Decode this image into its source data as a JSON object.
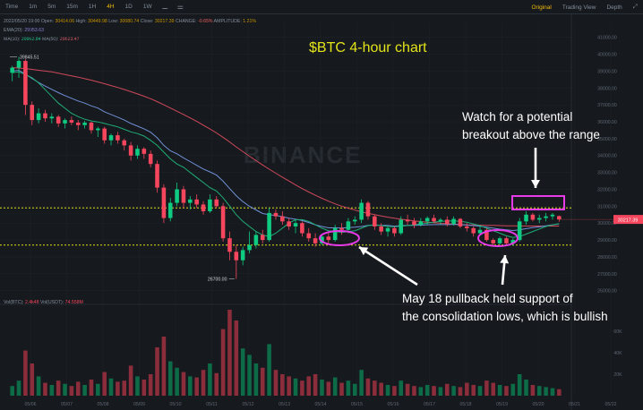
{
  "toolbar": {
    "intervals": [
      "Time",
      "1m",
      "5m",
      "15m",
      "1H",
      "4H",
      "1D",
      "1W"
    ],
    "active": "4H",
    "views": [
      "Original",
      "Trading View",
      "Depth"
    ],
    "active_view": "Original"
  },
  "info": {
    "date": "2022/05/20 19:00",
    "open_label": "Open:",
    "open": "30414.06",
    "high_label": "High:",
    "high": "30449.98",
    "low_label": "Low:",
    "low": "30080.74",
    "close_label": "Close:",
    "close": "30217.39",
    "change_label": "CHANGE:",
    "change": "-0.65%",
    "amp_label": "AMPLITUDE:",
    "amp": "1.21%",
    "ema_label": "EMA(20):",
    "ema": "29953.63",
    "ma10_label": "MA(10):",
    "ma10": "29962.84",
    "ma50_label": "MA(50):",
    "ma50": "29823.47"
  },
  "title": "$BTC 4-hour chart",
  "watermark": "BINANCE",
  "annotations": {
    "top_line1": "Watch for a potential",
    "top_line2": "breakout above the range",
    "bottom_line1": "May 18 pullback held support of",
    "bottom_line2": "the consolidation lows, which is bullish"
  },
  "labels": {
    "high_marker": "39845.51",
    "low_marker": "26700.00",
    "price_tag": "30217.39"
  },
  "volume": {
    "vol_label": "Vol(BTC):",
    "vol_btc": "2.4k48",
    "usdt_label": "Vol(USDT):",
    "vol_usdt": "74.558M"
  },
  "colors": {
    "up": "#0ecb81",
    "down": "#f6465d",
    "accent": "#f0b90b",
    "title": "#e3e31a",
    "highlight": "#e83ae8"
  },
  "chart_data": {
    "type": "candlestick",
    "x_ticks": [
      "05/06",
      "05/07",
      "05/08",
      "05/09",
      "05/10",
      "05/11",
      "05/12",
      "05/13",
      "05/14",
      "05/15",
      "05/16",
      "05/17",
      "05/18",
      "05/19",
      "05/20",
      "05/21",
      "05/22"
    ],
    "y_ticks": [
      "41000.00",
      "40000.00",
      "39000.00",
      "38000.00",
      "37000.00",
      "36000.00",
      "35000.00",
      "34000.00",
      "33000.00",
      "32000.00",
      "31000.00",
      "30000.00",
      "29000.00",
      "28000.00",
      "27000.00",
      "26000.00"
    ],
    "ylim": [
      25400,
      41300
    ],
    "volume_ticks": [
      "60K",
      "40K",
      "20K"
    ],
    "volume_ylim": [
      0,
      80000
    ],
    "support_level": 28700,
    "resistance_level": 30900,
    "candles": [
      {
        "o": 38900,
        "h": 39300,
        "l": 38400,
        "c": 39200
      },
      {
        "o": 39200,
        "h": 39845,
        "l": 38600,
        "c": 39600
      },
      {
        "o": 39600,
        "h": 39700,
        "l": 36400,
        "c": 37000
      },
      {
        "o": 37000,
        "h": 37200,
        "l": 35800,
        "c": 36100
      },
      {
        "o": 36100,
        "h": 36800,
        "l": 35900,
        "c": 36500
      },
      {
        "o": 36500,
        "h": 36700,
        "l": 36000,
        "c": 36200
      },
      {
        "o": 36200,
        "h": 36500,
        "l": 35900,
        "c": 36300
      },
      {
        "o": 36300,
        "h": 36400,
        "l": 35700,
        "c": 35900
      },
      {
        "o": 35900,
        "h": 36200,
        "l": 35600,
        "c": 36100
      },
      {
        "o": 36100,
        "h": 36300,
        "l": 35800,
        "c": 35950
      },
      {
        "o": 35950,
        "h": 36100,
        "l": 35500,
        "c": 35800
      },
      {
        "o": 35800,
        "h": 36050,
        "l": 35600,
        "c": 35950
      },
      {
        "o": 35950,
        "h": 36000,
        "l": 35300,
        "c": 35500
      },
      {
        "o": 35500,
        "h": 35700,
        "l": 35100,
        "c": 35600
      },
      {
        "o": 35600,
        "h": 35700,
        "l": 34700,
        "c": 34900
      },
      {
        "o": 34900,
        "h": 35300,
        "l": 34600,
        "c": 35200
      },
      {
        "o": 35200,
        "h": 35400,
        "l": 34700,
        "c": 34900
      },
      {
        "o": 34900,
        "h": 35000,
        "l": 34300,
        "c": 34600
      },
      {
        "o": 34600,
        "h": 34800,
        "l": 33700,
        "c": 34000
      },
      {
        "o": 34000,
        "h": 34600,
        "l": 33800,
        "c": 34400
      },
      {
        "o": 34400,
        "h": 34500,
        "l": 33800,
        "c": 34100
      },
      {
        "o": 34100,
        "h": 34300,
        "l": 33300,
        "c": 33500
      },
      {
        "o": 33500,
        "h": 33700,
        "l": 31800,
        "c": 32100
      },
      {
        "o": 32100,
        "h": 32300,
        "l": 30000,
        "c": 30300
      },
      {
        "o": 30300,
        "h": 31500,
        "l": 30100,
        "c": 31200
      },
      {
        "o": 31200,
        "h": 32400,
        "l": 31000,
        "c": 32000
      },
      {
        "o": 32000,
        "h": 32200,
        "l": 30900,
        "c": 31200
      },
      {
        "o": 31200,
        "h": 31600,
        "l": 30800,
        "c": 31400
      },
      {
        "o": 31400,
        "h": 31700,
        "l": 30900,
        "c": 31100
      },
      {
        "o": 31100,
        "h": 31300,
        "l": 30500,
        "c": 30700
      },
      {
        "o": 30700,
        "h": 31700,
        "l": 30600,
        "c": 31400
      },
      {
        "o": 31400,
        "h": 31600,
        "l": 30900,
        "c": 31000
      },
      {
        "o": 31000,
        "h": 31200,
        "l": 28900,
        "c": 29100
      },
      {
        "o": 29100,
        "h": 29500,
        "l": 27800,
        "c": 28300
      },
      {
        "o": 28300,
        "h": 28700,
        "l": 26700,
        "c": 27800
      },
      {
        "o": 27800,
        "h": 28600,
        "l": 27500,
        "c": 28400
      },
      {
        "o": 28400,
        "h": 29500,
        "l": 28200,
        "c": 28700
      },
      {
        "o": 28700,
        "h": 29500,
        "l": 28500,
        "c": 29300
      },
      {
        "o": 29300,
        "h": 29600,
        "l": 28800,
        "c": 29000
      },
      {
        "o": 29000,
        "h": 30900,
        "l": 28900,
        "c": 30600
      },
      {
        "o": 30600,
        "h": 30800,
        "l": 30200,
        "c": 30400
      },
      {
        "o": 30400,
        "h": 30700,
        "l": 29900,
        "c": 30100
      },
      {
        "o": 30100,
        "h": 30300,
        "l": 29600,
        "c": 29800
      },
      {
        "o": 29800,
        "h": 30200,
        "l": 29400,
        "c": 30000
      },
      {
        "o": 30000,
        "h": 30100,
        "l": 29200,
        "c": 29400
      },
      {
        "o": 29400,
        "h": 29700,
        "l": 28900,
        "c": 29100
      },
      {
        "o": 29100,
        "h": 29400,
        "l": 28600,
        "c": 28800
      },
      {
        "o": 28800,
        "h": 29300,
        "l": 28700,
        "c": 29200
      },
      {
        "o": 29200,
        "h": 29500,
        "l": 28800,
        "c": 29000
      },
      {
        "o": 29000,
        "h": 29900,
        "l": 28900,
        "c": 29700
      },
      {
        "o": 29700,
        "h": 30000,
        "l": 29300,
        "c": 29600
      },
      {
        "o": 29600,
        "h": 30300,
        "l": 29400,
        "c": 30100
      },
      {
        "o": 30100,
        "h": 30400,
        "l": 29900,
        "c": 30200
      },
      {
        "o": 30200,
        "h": 31400,
        "l": 30000,
        "c": 31200
      },
      {
        "o": 31200,
        "h": 31300,
        "l": 30200,
        "c": 30400
      },
      {
        "o": 30400,
        "h": 30500,
        "l": 29600,
        "c": 29800
      },
      {
        "o": 29800,
        "h": 30000,
        "l": 29300,
        "c": 29500
      },
      {
        "o": 29500,
        "h": 29800,
        "l": 29200,
        "c": 29700
      },
      {
        "o": 29700,
        "h": 29800,
        "l": 29200,
        "c": 29400
      },
      {
        "o": 29400,
        "h": 30400,
        "l": 29300,
        "c": 30200
      },
      {
        "o": 30200,
        "h": 30500,
        "l": 29900,
        "c": 30100
      },
      {
        "o": 30100,
        "h": 30300,
        "l": 29700,
        "c": 29900
      },
      {
        "o": 29900,
        "h": 30300,
        "l": 29800,
        "c": 30100
      },
      {
        "o": 30100,
        "h": 30400,
        "l": 29900,
        "c": 30300
      },
      {
        "o": 30300,
        "h": 30500,
        "l": 30000,
        "c": 30100
      },
      {
        "o": 30100,
        "h": 30300,
        "l": 29900,
        "c": 30200
      },
      {
        "o": 30200,
        "h": 30400,
        "l": 29800,
        "c": 29950
      },
      {
        "o": 29950,
        "h": 30400,
        "l": 29850,
        "c": 30250
      },
      {
        "o": 30250,
        "h": 30300,
        "l": 29700,
        "c": 29800
      },
      {
        "o": 29800,
        "h": 30000,
        "l": 29500,
        "c": 29700
      },
      {
        "o": 29700,
        "h": 29800,
        "l": 29200,
        "c": 29400
      },
      {
        "o": 29400,
        "h": 29800,
        "l": 29300,
        "c": 29600
      },
      {
        "o": 29600,
        "h": 29700,
        "l": 28900,
        "c": 29000
      },
      {
        "o": 29000,
        "h": 29100,
        "l": 28600,
        "c": 28800
      },
      {
        "o": 28800,
        "h": 29200,
        "l": 28700,
        "c": 29100
      },
      {
        "o": 29100,
        "h": 29200,
        "l": 28650,
        "c": 28800
      },
      {
        "o": 28800,
        "h": 29100,
        "l": 28650,
        "c": 29000
      },
      {
        "o": 29000,
        "h": 30300,
        "l": 28900,
        "c": 30100
      },
      {
        "o": 30100,
        "h": 30700,
        "l": 29900,
        "c": 30500
      },
      {
        "o": 30500,
        "h": 30600,
        "l": 30100,
        "c": 30200
      },
      {
        "o": 30200,
        "h": 30500,
        "l": 30000,
        "c": 30300
      },
      {
        "o": 30300,
        "h": 30600,
        "l": 30100,
        "c": 30400
      },
      {
        "o": 30400,
        "h": 30600,
        "l": 30200,
        "c": 30500
      },
      {
        "o": 30414,
        "h": 30450,
        "l": 30080,
        "c": 30217
      }
    ],
    "volumes": [
      9,
      14,
      42,
      30,
      18,
      12,
      10,
      14,
      11,
      9,
      13,
      10,
      15,
      11,
      22,
      16,
      13,
      14,
      28,
      18,
      15,
      20,
      45,
      55,
      32,
      26,
      22,
      18,
      17,
      24,
      30,
      21,
      62,
      80,
      70,
      44,
      38,
      30,
      26,
      48,
      24,
      20,
      18,
      16,
      14,
      18,
      20,
      15,
      13,
      17,
      12,
      14,
      11,
      24,
      16,
      14,
      12,
      10,
      9,
      14,
      11,
      9,
      8,
      10,
      9,
      8,
      11,
      9,
      8,
      12,
      10,
      9,
      14,
      12,
      10,
      9,
      11,
      20,
      15,
      10,
      9,
      8,
      7,
      6
    ],
    "ema20": [
      39000,
      39050,
      38820,
      38560,
      38320,
      38110,
      37920,
      37720,
      37550,
      37390,
      37230,
      37100,
      36940,
      36810,
      36590,
      36430,
      36270,
      36100,
      35900,
      35740,
      35580,
      35380,
      35050,
      34600,
      34280,
      34100,
      33860,
      33640,
      33420,
      33200,
      33030,
      32840,
      32480,
      32040,
      31620,
      31270,
      30990,
      30780,
      30570,
      30500,
      30450,
      30380,
      30290,
      30230,
      30150,
      30030,
      29900,
      29800,
      29720,
      29720,
      29710,
      29730,
      29760,
      29800,
      29860,
      29880,
      29870,
      29860,
      29820,
      29850,
      29860,
      29870,
      29880,
      29900,
      29910,
      29910,
      29910,
      29920,
      29910,
      29880,
      29850,
      29810,
      29760,
      29700,
      29640,
      29600,
      29560,
      29600,
      29670,
      29730,
      29780,
      29840,
      29900,
      29953
    ],
    "ma10": [
      38900,
      38950,
      38800,
      38600,
      38300,
      37900,
      37500,
      37100,
      36800,
      36500,
      36300,
      36150,
      36050,
      35990,
      35900,
      35800,
      35700,
      35550,
      35400,
      35300,
      35150,
      34900,
      34600,
      34200,
      33800,
      33500,
      33300,
      33000,
      32700,
      32400,
      32100,
      31900,
      31500,
      31000,
      30500,
      30100,
      29800,
      29500,
      29300,
      29200,
      29400,
      29700,
      30000,
      30200,
      30200,
      30100,
      29900,
      29700,
      29550,
      29500,
      29450,
      29500,
      29550,
      29700,
      29850,
      29900,
      29850,
      29800,
      29780,
      29820,
      29850,
      29900,
      29950,
      30000,
      30050,
      30100,
      30120,
      30130,
      30100,
      30050,
      29950,
      29850,
      29700,
      29550,
      29400,
      29250,
      29150,
      29200,
      29350,
      29500,
      29650,
      29800,
      29900,
      29962
    ],
    "ma50": [
      39200,
      39180,
      39150,
      39100,
      39050,
      39000,
      38950,
      38880,
      38800,
      38720,
      38640,
      38550,
      38460,
      38360,
      38250,
      38140,
      38030,
      37910,
      37780,
      37650,
      37510,
      37360,
      37190,
      37000,
      36810,
      36620,
      36430,
      36230,
      36020,
      35800,
      35570,
      35340,
      35080,
      34800,
      34510,
      34230,
      33960,
      33700,
      33440,
      33190,
      32950,
      32720,
      32490,
      32260,
      32040,
      31840,
      31650,
      31470,
      31300,
      31140,
      31000,
      30880,
      30770,
      30670,
      30580,
      30500,
      30420,
      30350,
      30290,
      30230,
      30180,
      30130,
      30090,
      30050,
      30020,
      29990,
      29960,
      29940,
      29920,
      29900,
      29890,
      29880,
      29870,
      29860,
      29850,
      29840,
      29835,
      29830,
      29828,
      29826,
      29825,
      29824,
      29824,
      29823
    ]
  }
}
